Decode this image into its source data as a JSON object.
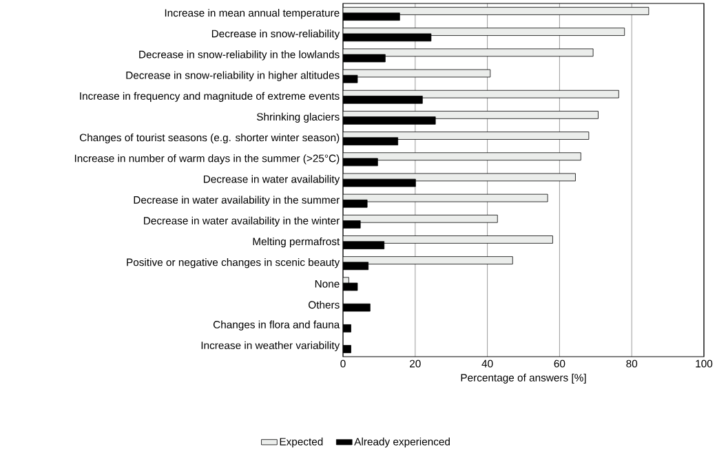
{
  "chart_data": {
    "type": "bar",
    "orientation": "horizontal",
    "categories": [
      "Increase in mean annual temperature",
      "Decrease in snow-reliability",
      "Decrease in snow-reliability in the lowlands",
      "Decrease in snow-reliability in higher altitudes",
      "Increase in frequency and magnitude of extreme events",
      "Shrinking glaciers",
      "Changes of tourist seasons (e.g. shorter winter season)",
      "Increase in number of warm days in the summer (>25°C)",
      "Decrease in water availability",
      "Decrease in water availability in the summer",
      "Decrease in water availability in the winter",
      "Melting permafrost",
      "Positive or negative changes in scenic beauty",
      "None",
      "Others",
      "Changes in flora and fauna",
      "Increase in weather variability"
    ],
    "series": [
      {
        "name": "Expected",
        "color": "#ebedeb",
        "values": [
          84.7,
          78.0,
          69.3,
          40.8,
          76.4,
          70.7,
          68.1,
          65.9,
          64.4,
          56.7,
          42.8,
          58.1,
          47.0,
          1.6,
          null,
          null,
          null
        ]
      },
      {
        "name": "Already experienced",
        "color": "#000000",
        "values": [
          15.7,
          24.4,
          11.7,
          4.0,
          22.0,
          25.6,
          15.2,
          9.6,
          20.1,
          6.7,
          4.8,
          11.4,
          7.0,
          4.0,
          7.5,
          2.2,
          2.2
        ]
      }
    ],
    "xlabel": "Percentage of answers [%]",
    "xlim": [
      0,
      100
    ],
    "xticks": [
      0,
      20,
      40,
      60,
      80,
      100
    ],
    "grid": "x",
    "legend": "bottom"
  }
}
